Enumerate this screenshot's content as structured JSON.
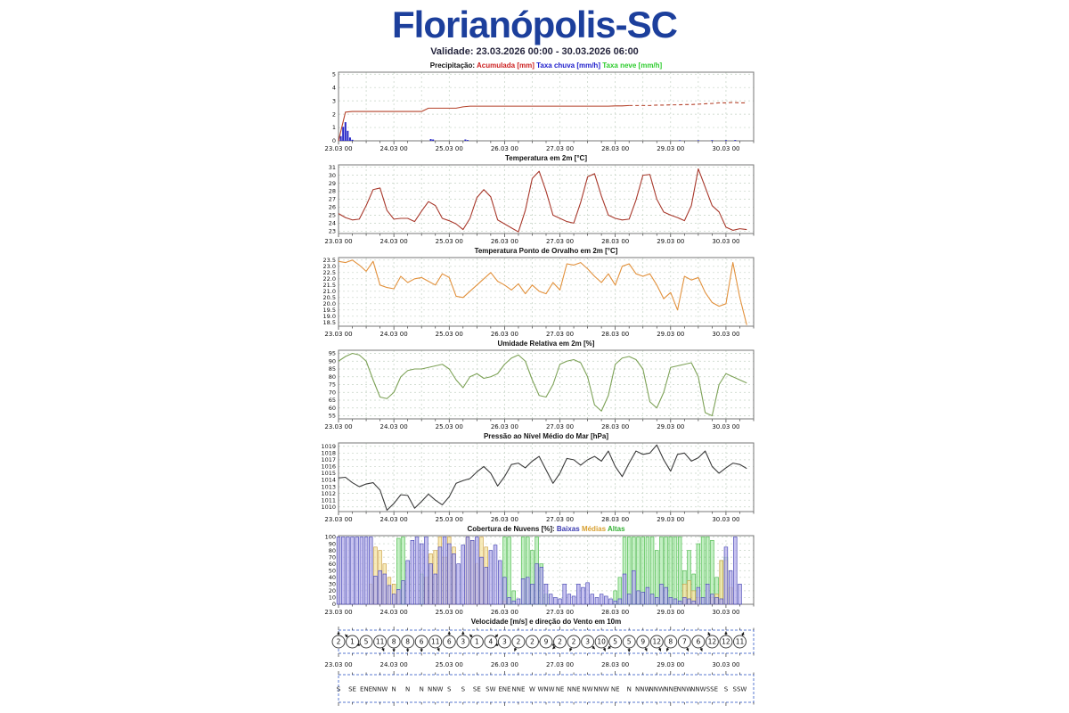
{
  "header": {
    "title": "Florianópolis-SC",
    "title_color": "#1c3f9c",
    "subtitle": "Validade: 23.03.2026 00:00 - 30.03.2026 06:00"
  },
  "x_axis": {
    "labels": [
      "23.03 00",
      "24.03 00",
      "25.03 00",
      "26.03 00",
      "27.03 00",
      "28.03 00",
      "29.03 00",
      "30.03 00"
    ],
    "hours": [
      0,
      24,
      48,
      72,
      96,
      120,
      144,
      168
    ],
    "max_hour": 180,
    "minor_step": 6,
    "grid_color": "#c4d2c4",
    "box_color": "#5a78d2"
  },
  "chart_data": [
    {
      "id": "precip",
      "type": "line+bar",
      "title": "Precipitação:",
      "legend": [
        {
          "label": "Acumulada [mm]",
          "color": "#cc2020"
        },
        {
          "label": "Taxa chuva [mm/h]",
          "color": "#2020cc"
        },
        {
          "label": "Taxa neve [mm/h]",
          "color": "#2ecc2e"
        }
      ],
      "ylim": [
        0,
        5.15
      ],
      "yticks": [
        0,
        1,
        2,
        3,
        4,
        5
      ],
      "step": 3,
      "line_color": "#b5442c",
      "dashed_from": 126,
      "values": [
        0,
        2.15,
        2.2,
        2.2,
        2.2,
        2.2,
        2.2,
        2.2,
        2.2,
        2.2,
        2.2,
        2.2,
        2.2,
        2.45,
        2.45,
        2.45,
        2.45,
        2.45,
        2.55,
        2.6,
        2.6,
        2.6,
        2.6,
        2.6,
        2.6,
        2.6,
        2.6,
        2.6,
        2.6,
        2.6,
        2.6,
        2.6,
        2.6,
        2.6,
        2.6,
        2.6,
        2.6,
        2.6,
        2.6,
        2.6,
        2.62,
        2.62,
        2.65,
        2.65,
        2.65,
        2.65,
        2.68,
        2.68,
        2.7,
        2.7,
        2.72,
        2.72,
        2.75,
        2.78,
        2.8,
        2.85,
        2.85,
        2.88,
        2.85,
        2.85
      ],
      "bar_color": "#2828c8",
      "rain_bars": [
        [
          1,
          0.35
        ],
        [
          2,
          1.05
        ],
        [
          3,
          1.4
        ],
        [
          4,
          0.75
        ],
        [
          5,
          0.25
        ],
        [
          6,
          0.08
        ],
        [
          40,
          0.13
        ],
        [
          41,
          0.1
        ],
        [
          55,
          0.1
        ],
        [
          56,
          0.06
        ],
        [
          148,
          0.04
        ],
        [
          156,
          0.04
        ],
        [
          162,
          0.05
        ],
        [
          168,
          0.05
        ],
        [
          172,
          0.06
        ]
      ]
    },
    {
      "id": "temp",
      "type": "line",
      "title": "Temperatura em 2m [°C]",
      "color": "#a8382b",
      "ylim": [
        22.7,
        31.3
      ],
      "yticks": [
        23,
        24,
        25,
        26,
        27,
        28,
        29,
        30,
        31
      ],
      "step": 3,
      "values": [
        25.2,
        24.7,
        24.4,
        24.5,
        26.2,
        28.2,
        28.4,
        25.6,
        24.5,
        24.6,
        24.6,
        24.2,
        25.5,
        26.7,
        26.2,
        24.6,
        24.3,
        23.9,
        23.2,
        24.6,
        27.2,
        28.2,
        27.3,
        24.4,
        23.9,
        23.4,
        22.9,
        25.6,
        29.6,
        30.5,
        28.0,
        25.0,
        24.6,
        24.2,
        24.0,
        26.6,
        29.8,
        30.2,
        27.4,
        25.0,
        24.6,
        24.4,
        24.5,
        26.9,
        30.0,
        30.1,
        27.0,
        25.4,
        25.0,
        24.7,
        24.3,
        26.2,
        30.8,
        28.5,
        26.2,
        25.4,
        23.5,
        23.1,
        23.3,
        23.2
      ]
    },
    {
      "id": "dew",
      "type": "line",
      "title": "Temperatura Ponto de Orvalho em 2m [°C]",
      "color": "#e2913c",
      "ylim": [
        18.2,
        23.7
      ],
      "ydec": 1,
      "yticks": [
        18.5,
        19.0,
        19.5,
        20.0,
        20.5,
        21.0,
        21.5,
        22.0,
        22.5,
        23.0,
        23.5
      ],
      "step": 3,
      "values": [
        23.4,
        23.3,
        23.5,
        23.1,
        22.6,
        23.4,
        21.5,
        21.3,
        21.2,
        22.2,
        21.7,
        22.0,
        22.1,
        21.8,
        21.5,
        22.4,
        22.1,
        20.6,
        20.5,
        21.0,
        21.5,
        22.0,
        22.5,
        21.8,
        21.5,
        21.1,
        21.6,
        20.8,
        21.5,
        21.0,
        20.8,
        21.7,
        21.1,
        23.2,
        23.1,
        23.3,
        22.8,
        22.2,
        21.7,
        22.4,
        21.5,
        23.0,
        23.2,
        22.4,
        22.2,
        22.4,
        21.5,
        20.4,
        20.9,
        19.5,
        22.2,
        21.9,
        22.1,
        20.9,
        20.1,
        19.8,
        20.0,
        23.3,
        20.5,
        18.3
      ]
    },
    {
      "id": "rh",
      "type": "line",
      "title": "Umidade Relativa em 2m [%]",
      "color": "#7da257",
      "ylim": [
        53,
        97
      ],
      "yticks": [
        55,
        60,
        65,
        70,
        75,
        80,
        85,
        90,
        95
      ],
      "step": 3,
      "values": [
        90,
        93,
        95,
        94,
        90,
        78,
        67,
        66,
        70,
        80,
        84,
        85,
        85,
        86,
        87,
        88,
        85,
        78,
        73,
        80,
        82,
        79,
        80,
        82,
        88,
        92,
        94,
        90,
        78,
        68,
        67,
        75,
        88,
        90,
        91,
        89,
        80,
        62,
        58,
        68,
        88,
        92,
        93,
        91,
        85,
        64,
        60,
        70,
        86,
        87,
        88,
        89,
        80,
        57,
        55,
        75,
        82,
        80,
        78,
        76
      ]
    },
    {
      "id": "pres",
      "type": "line",
      "title": "Pressão ao Nível Médio do Mar [hPa]",
      "color": "#3a3a3a",
      "ylim": [
        1009.3,
        1019.5
      ],
      "yticks": [
        1010,
        1011,
        1012,
        1013,
        1014,
        1015,
        1016,
        1017,
        1018,
        1019
      ],
      "step": 3,
      "values": [
        1014.3,
        1014.4,
        1013.6,
        1013.0,
        1013.4,
        1013.6,
        1012.5,
        1009.5,
        1010.5,
        1011.8,
        1011.7,
        1009.8,
        1010.8,
        1011.9,
        1011.0,
        1010.3,
        1011.5,
        1013.5,
        1013.9,
        1014.2,
        1015.2,
        1016.0,
        1015.0,
        1013.1,
        1014.5,
        1016.3,
        1016.5,
        1015.8,
        1016.8,
        1017.5,
        1015.5,
        1013.5,
        1015.0,
        1017.2,
        1017.0,
        1016.2,
        1017.0,
        1017.5,
        1016.8,
        1018.3,
        1016.0,
        1014.5,
        1016.5,
        1018.3,
        1017.8,
        1018.0,
        1019.2,
        1017.0,
        1015.3,
        1017.8,
        1018.0,
        1016.8,
        1017.3,
        1018.3,
        1016.0,
        1015.0,
        1015.8,
        1016.5,
        1016.3,
        1015.7
      ]
    },
    {
      "id": "clouds",
      "type": "bars3",
      "title": "Cobertura de Nuvens [%]:",
      "legend": [
        {
          "label": "Baixas",
          "color": "#3a3ab0"
        },
        {
          "label": "Médias",
          "color": "#d8a030"
        },
        {
          "label": "Altas",
          "color": "#35b035"
        }
      ],
      "ylim": [
        0,
        102
      ],
      "yticks": [
        0,
        10,
        20,
        30,
        40,
        50,
        60,
        70,
        80,
        90,
        100
      ],
      "step": 2,
      "series": [
        {
          "name": "Baixas",
          "fill": "#b7b1ea",
          "stroke": "#3a3ab0",
          "values": [
            100,
            100,
            100,
            100,
            100,
            100,
            100,
            100,
            42,
            50,
            45,
            28,
            15,
            22,
            35,
            65,
            95,
            100,
            90,
            100,
            60,
            45,
            85,
            100,
            90,
            75,
            60,
            88,
            100,
            95,
            100,
            70,
            55,
            80,
            88,
            65,
            40,
            10,
            5,
            8,
            38,
            40,
            30,
            60,
            55,
            30,
            15,
            10,
            8,
            30,
            15,
            12,
            30,
            25,
            32,
            15,
            10,
            15,
            12,
            8,
            5,
            8,
            45,
            15,
            50,
            20,
            18,
            25,
            15,
            10,
            30,
            25,
            10,
            8,
            5,
            10,
            8,
            5,
            25,
            10,
            30,
            15,
            10,
            8,
            85,
            50,
            100,
            30
          ]
        },
        {
          "name": "Médias",
          "fill": "#f5e5a6",
          "stroke": "#c89838",
          "values": [
            0,
            0,
            0,
            0,
            0,
            0,
            0,
            30,
            85,
            80,
            60,
            40,
            30,
            20,
            0,
            0,
            0,
            0,
            0,
            40,
            75,
            80,
            100,
            70,
            100,
            85,
            0,
            0,
            100,
            95,
            60,
            100,
            85,
            0,
            0,
            0,
            5,
            0,
            0,
            0,
            0,
            0,
            0,
            0,
            0,
            0,
            0,
            0,
            0,
            0,
            0,
            0,
            0,
            0,
            0,
            0,
            0,
            0,
            0,
            0,
            0,
            0,
            0,
            0,
            0,
            0,
            0,
            0,
            0,
            0,
            0,
            0,
            0,
            0,
            0,
            30,
            35,
            20,
            10,
            0,
            0,
            10,
            15,
            65,
            65,
            25,
            0,
            0
          ]
        },
        {
          "name": "Altas",
          "fill": "#b2eab2",
          "stroke": "#3db53d",
          "values": [
            0,
            0,
            0,
            0,
            0,
            0,
            0,
            0,
            0,
            0,
            0,
            0,
            0,
            98,
            100,
            0,
            0,
            0,
            45,
            0,
            0,
            0,
            0,
            0,
            0,
            0,
            0,
            0,
            0,
            0,
            0,
            0,
            0,
            0,
            0,
            0,
            100,
            100,
            20,
            0,
            100,
            100,
            80,
            100,
            60,
            15,
            0,
            0,
            0,
            0,
            0,
            0,
            0,
            0,
            0,
            0,
            0,
            0,
            0,
            0,
            20,
            40,
            100,
            100,
            100,
            100,
            100,
            100,
            100,
            80,
            100,
            100,
            100,
            100,
            100,
            50,
            80,
            45,
            90,
            100,
            100,
            95,
            40,
            65,
            70,
            0,
            0,
            0
          ]
        }
      ]
    },
    {
      "id": "wind",
      "type": "wind",
      "title": "Velocidade [m/s] e direção do Vento em 10m",
      "step": 6,
      "circle_color": "#444444",
      "speeds": [
        2,
        1,
        5,
        11,
        8,
        8,
        6,
        11,
        6,
        3,
        1,
        4,
        3,
        2,
        2,
        9,
        2,
        2,
        3,
        10,
        5,
        5,
        9,
        12,
        8,
        7,
        6,
        12,
        12,
        11
      ],
      "directions": [
        "S",
        "SE",
        "ENE",
        "NNW",
        "N",
        "N",
        "N",
        "NNW",
        "S",
        "S",
        "SE",
        "SW",
        "ENE",
        "NNE",
        "W",
        "WNW",
        "NE",
        "NNE",
        "NW",
        "NNW",
        "NE",
        "N",
        "NNW",
        "NNW",
        "NNE",
        "NNW",
        "NNW",
        "SSE",
        "S",
        "SSW"
      ]
    }
  ]
}
